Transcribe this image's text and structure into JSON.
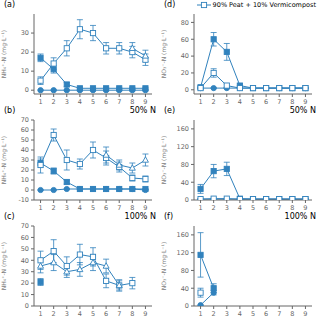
{
  "chart_data": [
    {
      "type": "line",
      "title": "(a)",
      "y_label": "NH₄⁺-N (mg·L⁻¹)",
      "xlim": [
        0.5,
        9.5
      ],
      "xticks": [
        1,
        2,
        3,
        4,
        5,
        6,
        7,
        8,
        9
      ],
      "ylim": [
        -2,
        40
      ],
      "yticks": [
        0,
        10,
        20,
        30
      ],
      "series": [
        {
          "x": [
            1,
            2,
            3,
            4,
            5,
            6,
            7,
            8,
            9
          ],
          "values": [
            0,
            0,
            0,
            0,
            0,
            0,
            0,
            0,
            0
          ],
          "yerr": [
            0.3,
            0.3,
            0.3,
            0.3,
            0.3,
            0.3,
            0.3,
            0.3,
            0.3
          ],
          "marker": "filled-circle"
        },
        {
          "x": [
            1,
            2,
            3,
            4,
            5,
            6,
            7,
            8,
            9
          ],
          "values": [
            17,
            11,
            3,
            1,
            1,
            1,
            1,
            1,
            1
          ],
          "yerr": [
            2,
            2,
            1,
            0.3,
            0.3,
            0.3,
            0.3,
            0.3,
            0.3
          ],
          "marker": "filled-square"
        },
        {
          "x": [
            1,
            2,
            3,
            4,
            5,
            6,
            7,
            8,
            9
          ],
          "values": [
            5,
            14,
            22,
            32,
            30,
            22,
            22,
            20,
            16
          ],
          "yerr": [
            2,
            3,
            4,
            5,
            4,
            3,
            3,
            3,
            3
          ],
          "marker": "open-square"
        },
        {
          "x": [
            7,
            8,
            9
          ],
          "values": [
            null,
            22,
            18
          ],
          "yerr": [
            null,
            3,
            3
          ],
          "marker": "open-triangle"
        }
      ]
    },
    {
      "type": "line",
      "title": "(b)",
      "subtitle": "50% N",
      "y_label": "NH₄⁺-N (mg·L⁻¹)",
      "xlim": [
        0.5,
        9.5
      ],
      "xticks": [
        1,
        2,
        3,
        4,
        5,
        6,
        7,
        8,
        9
      ],
      "ylim": [
        -10,
        70
      ],
      "yticks": [
        -10,
        0,
        10,
        20,
        30,
        40,
        50,
        60,
        70
      ],
      "series": [
        {
          "x": [
            1,
            2,
            3,
            4,
            5,
            6,
            7,
            8,
            9
          ],
          "values": [
            0,
            0,
            1,
            1,
            1,
            1,
            1,
            1,
            0
          ],
          "yerr": [
            0.3,
            0.3,
            0.5,
            0.5,
            0.5,
            0.5,
            0.5,
            0.5,
            0.3
          ],
          "marker": "filled-circle"
        },
        {
          "x": [
            1,
            2,
            3,
            4,
            5,
            6,
            7,
            8,
            9
          ],
          "values": [
            27,
            19,
            8,
            1,
            1,
            1,
            1,
            1,
            1
          ],
          "yerr": [
            4,
            3,
            2,
            0.3,
            0.3,
            0.3,
            0.3,
            0.3,
            0.3
          ],
          "marker": "filled-square"
        },
        {
          "x": [
            1,
            2,
            3,
            4,
            5,
            6,
            7,
            8,
            9
          ],
          "values": [
            25,
            55,
            30,
            26,
            40,
            32,
            23,
            12,
            11
          ],
          "yerr": [
            8,
            6,
            10,
            5,
            8,
            7,
            5,
            3,
            3
          ],
          "marker": "open-square"
        },
        {
          "x": [
            5,
            6,
            7,
            8,
            9
          ],
          "values": [
            null,
            35,
            25,
            22,
            30
          ],
          "yerr": [
            null,
            8,
            5,
            5,
            6
          ],
          "marker": "open-triangle"
        }
      ]
    },
    {
      "type": "line",
      "title": "(c)",
      "subtitle": "100% N",
      "y_label": "NH₄⁺-N (mg·L⁻¹)",
      "xlim": [
        0.5,
        9.5
      ],
      "xticks": [
        1,
        2,
        3,
        4,
        5,
        6,
        7,
        8,
        9
      ],
      "ylim": [
        0,
        70
      ],
      "yticks": [
        0,
        10,
        20,
        30,
        40,
        50,
        60,
        70
      ],
      "series": [
        {
          "x": [
            1
          ],
          "values": [
            21
          ],
          "yerr": [
            3
          ],
          "marker": "filled-square"
        },
        {
          "x": [
            1,
            2,
            3,
            4,
            5,
            6,
            7,
            8
          ],
          "values": [
            40,
            48,
            35,
            45,
            43,
            22,
            18,
            20
          ],
          "yerr": [
            8,
            10,
            8,
            9,
            8,
            6,
            5,
            5
          ],
          "marker": "open-square"
        },
        {
          "x": [
            1,
            2,
            3,
            4,
            5,
            6,
            7
          ],
          "values": [
            35,
            38,
            30,
            32,
            38,
            35,
            18
          ],
          "yerr": [
            6,
            7,
            5,
            6,
            7,
            6,
            4
          ],
          "marker": "open-triangle"
        }
      ]
    },
    {
      "type": "line",
      "title": "(d)",
      "y_label": "NO₃⁻-N (mg·L⁻¹)",
      "xlim": [
        0.5,
        9.5
      ],
      "xticks": [
        1,
        2,
        3,
        4,
        5,
        6,
        7,
        8,
        9
      ],
      "ylim": [
        -5,
        90
      ],
      "yticks": [
        0,
        20,
        40,
        60,
        80
      ],
      "legend": "upper right",
      "series": [
        {
          "x": [
            1,
            2,
            3,
            4,
            5,
            6,
            7,
            8,
            9
          ],
          "values": [
            2,
            2,
            2,
            2,
            2,
            2,
            2,
            2,
            2
          ],
          "yerr": [
            0.5,
            0.5,
            0.5,
            0.5,
            0.5,
            0.5,
            0.5,
            0.5,
            0.5
          ],
          "marker": "filled-circle"
        },
        {
          "x": [
            1,
            2,
            3,
            4,
            5,
            6,
            7,
            8,
            9
          ],
          "values": [
            3,
            60,
            45,
            5,
            2,
            2,
            2,
            2,
            2
          ],
          "yerr": [
            1,
            8,
            10,
            2,
            0.5,
            0.5,
            0.5,
            0.5,
            0.5
          ],
          "marker": "filled-square"
        },
        {
          "name": "90% Peat + 10% Vermicompost",
          "x": [
            1,
            2,
            3,
            4,
            5,
            6,
            7,
            8,
            9
          ],
          "values": [
            2,
            20,
            5,
            2,
            2,
            2,
            2,
            2,
            2
          ],
          "yerr": [
            1,
            5,
            2,
            1,
            0.5,
            0.5,
            0.5,
            0.5,
            0.5
          ],
          "marker": "open-square"
        }
      ]
    },
    {
      "type": "line",
      "title": "(e)",
      "subtitle": "50% N",
      "y_label": "NO₃⁻-N (mg·L⁻¹)",
      "xlim": [
        0.5,
        9.5
      ],
      "xticks": [
        1,
        2,
        3,
        4,
        5,
        6,
        7,
        8,
        9
      ],
      "ylim": [
        0,
        180
      ],
      "yticks": [
        0,
        40,
        80,
        120,
        160
      ],
      "series": [
        {
          "x": [
            1,
            2,
            3,
            4,
            5,
            6,
            7,
            8,
            9
          ],
          "values": [
            2,
            2,
            2,
            2,
            2,
            2,
            2,
            2,
            2
          ],
          "yerr": [
            0.5,
            0.5,
            0.5,
            0.5,
            0.5,
            0.5,
            0.5,
            0.5,
            0.5
          ],
          "marker": "filled-circle"
        },
        {
          "x": [
            1,
            2,
            3,
            4,
            5,
            6,
            7,
            8,
            9
          ],
          "values": [
            25,
            65,
            70,
            3,
            2,
            2,
            2,
            2,
            2
          ],
          "yerr": [
            10,
            15,
            15,
            1,
            0.5,
            0.5,
            0.5,
            0.5,
            0.5
          ],
          "marker": "filled-square"
        },
        {
          "x": [
            1,
            2,
            3,
            4,
            5,
            6,
            7,
            8,
            9
          ],
          "values": [
            2,
            3,
            3,
            2,
            2,
            2,
            2,
            2,
            2
          ],
          "yerr": [
            1,
            1,
            1,
            1,
            0.5,
            0.5,
            0.5,
            0.5,
            0.5
          ],
          "marker": "open-square"
        }
      ]
    },
    {
      "type": "line",
      "title": "(f)",
      "subtitle": "100% N",
      "y_label": "NO₃⁻-N (mg·L⁻¹)",
      "xlim": [
        0.5,
        9.5
      ],
      "xticks": [
        1,
        2,
        3,
        4,
        5,
        6,
        7,
        8,
        9
      ],
      "ylim": [
        0,
        180
      ],
      "yticks": [
        0,
        40,
        80,
        120,
        160
      ],
      "series": [
        {
          "x": [
            1,
            2
          ],
          "values": [
            2,
            30
          ],
          "yerr": [
            0.5,
            5
          ],
          "marker": "filled-circle"
        },
        {
          "x": [
            1,
            2
          ],
          "values": [
            115,
            40
          ],
          "yerr": [
            50,
            10
          ],
          "marker": "filled-square"
        },
        {
          "x": [
            1
          ],
          "values": [
            30
          ],
          "yerr": [
            10
          ],
          "marker": "open-square"
        }
      ]
    }
  ]
}
